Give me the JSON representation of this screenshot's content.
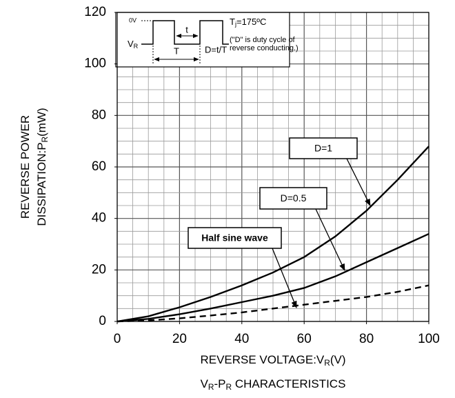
{
  "chart_data": {
    "type": "line",
    "title": [
      "V",
      "R",
      "-P",
      "R",
      " CHARACTERISTICS"
    ],
    "x_label": [
      "REVERSE VOLTAGE:V",
      "R",
      "(V)"
    ],
    "y_label": [
      [
        "REVERSE POWER"
      ],
      [
        "DISSIPATION:P",
        "R",
        "(mW)"
      ]
    ],
    "x": [
      0,
      10,
      20,
      30,
      40,
      50,
      60,
      70,
      80,
      90,
      100
    ],
    "series": [
      {
        "name": "D=1",
        "color": "#000000",
        "dash": false,
        "values": [
          0,
          2,
          5.5,
          9.5,
          14,
          19,
          25,
          33,
          43,
          55,
          68
        ]
      },
      {
        "name": "D=0.5",
        "color": "#000000",
        "dash": false,
        "values": [
          0,
          1,
          2.8,
          5,
          7.5,
          10,
          13,
          17.5,
          23,
          28.5,
          34
        ]
      },
      {
        "name": "Half sine wave",
        "color": "#000000",
        "dash": true,
        "values": [
          0,
          0.4,
          1.2,
          2.3,
          3.5,
          5,
          6.5,
          8,
          9.5,
          11.5,
          14
        ]
      }
    ],
    "xlim": [
      0,
      100
    ],
    "ylim": [
      0,
      120
    ],
    "xticks": [
      0,
      20,
      40,
      60,
      80,
      100
    ],
    "yticks": [
      0,
      20,
      40,
      60,
      80,
      100,
      120
    ],
    "xgrid": [
      0,
      5,
      10,
      15,
      20,
      25,
      30,
      35,
      40,
      45,
      50,
      55,
      60,
      65,
      70,
      75,
      80,
      85,
      90,
      95,
      100
    ],
    "ygrid": [
      0,
      5,
      10,
      15,
      20,
      25,
      30,
      35,
      40,
      45,
      50,
      55,
      60,
      65,
      70,
      75,
      80,
      85,
      90,
      95,
      100,
      105,
      110,
      115,
      120
    ],
    "grid": true,
    "inset": {
      "zero": "0V",
      "vr": [
        "V",
        "R"
      ],
      "t": "t",
      "T": "T",
      "d": "D=t/T",
      "tj": [
        "T",
        "j",
        "=175ºC"
      ],
      "note": [
        "(\"D\" is duty cycle of",
        "reverse conducting.)"
      ]
    }
  }
}
